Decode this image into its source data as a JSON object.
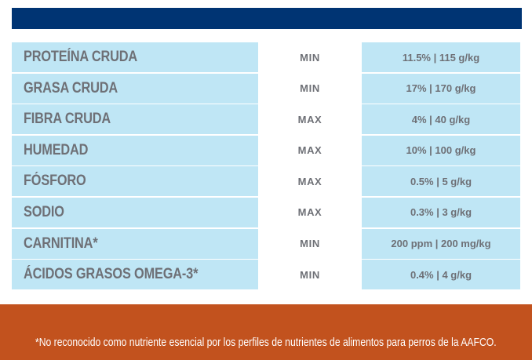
{
  "colors": {
    "header_bar": "#003473",
    "row_background": "#bfe6f5",
    "text": "#6e7076",
    "footer_background": "#c2521e",
    "footer_text": "#ffffff"
  },
  "rows": [
    {
      "nutrient": "PROTEÍNA CRUDA",
      "limit": "MIN",
      "value": "11.5% | 115 g/kg"
    },
    {
      "nutrient": "GRASA CRUDA",
      "limit": "MIN",
      "value": "17% | 170 g/kg"
    },
    {
      "nutrient": "FIBRA CRUDA",
      "limit": "MAX",
      "value": "4% | 40 g/kg"
    },
    {
      "nutrient": "HUMEDAD",
      "limit": "MAX",
      "value": "10% | 100 g/kg"
    },
    {
      "nutrient": "FÓSFORO",
      "limit": "MAX",
      "value": "0.5% | 5 g/kg"
    },
    {
      "nutrient": "SODIO",
      "limit": "MAX",
      "value": "0.3% | 3 g/kg"
    },
    {
      "nutrient": "CARNITINA*",
      "limit": "MIN",
      "value": "200 ppm | 200 mg/kg"
    },
    {
      "nutrient": "ÁCIDOS GRASOS OMEGA-3*",
      "limit": "MIN",
      "value": "0.4% | 4 g/kg"
    }
  ],
  "footnote": "*No reconocido como nutriente esencial por los perfiles de nutrientes de alimentos para perros de la AAFCO."
}
